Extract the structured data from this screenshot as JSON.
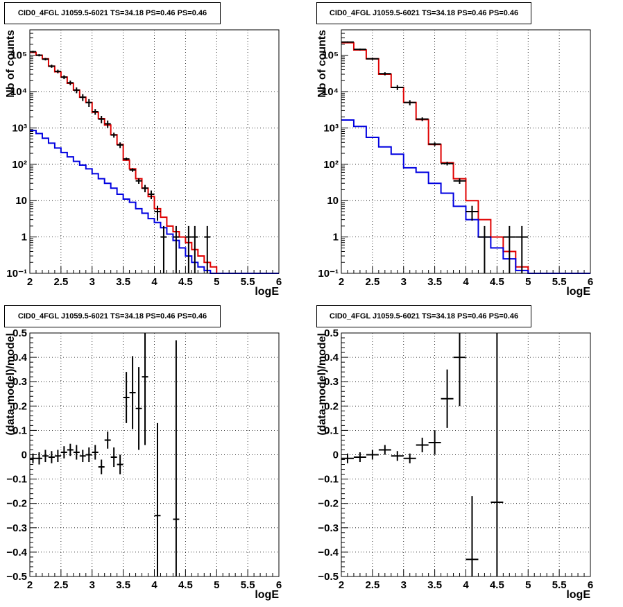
{
  "chart_data": [
    {
      "type": "line",
      "title": "CID0_4FGL J1059.5-6021 TS=34.18 PS=0.46 PS=0.46",
      "xlabel": "logE",
      "ylabel": "Nb of counts",
      "xlim": [
        2,
        6
      ],
      "ylim": [
        0.1,
        500000
      ],
      "yscale": "log",
      "grid": true,
      "xticks": [
        2,
        2.5,
        3,
        3.5,
        4,
        4.5,
        5,
        5.5,
        6
      ],
      "xtick_labels": [
        "2",
        "2.5",
        "3",
        "3.5",
        "4",
        "4.5",
        "5",
        "5.5",
        "6"
      ],
      "yticks": [
        0.1,
        1,
        10,
        100,
        1000,
        10000,
        100000
      ],
      "ytick_labels": [
        "10⁻¹",
        "1",
        "10",
        "10²",
        "10³",
        "10⁴",
        "10⁵"
      ],
      "series": [
        {
          "kind": "step",
          "color": "#e00000",
          "edges": [
            2.0,
            2.1,
            2.2,
            2.3,
            2.4,
            2.5,
            2.6,
            2.7,
            2.8,
            2.9,
            3.0,
            3.1,
            3.2,
            3.3,
            3.4,
            3.5,
            3.6,
            3.7,
            3.8,
            3.9,
            4.0,
            4.1,
            4.2,
            4.3,
            4.4,
            4.5,
            4.6,
            4.7,
            4.8,
            4.9,
            5.0,
            5.1,
            5.2,
            5.3,
            5.4,
            5.5,
            5.6,
            5.7,
            5.8,
            5.9,
            6.0
          ],
          "values": [
            120000,
            100000,
            80000,
            50000,
            35000,
            25000,
            17000,
            11000,
            7000,
            5000,
            2700,
            1800,
            1200,
            650,
            350,
            130,
            75,
            40,
            22,
            13,
            6,
            3.5,
            2,
            1.4,
            1,
            0.7,
            0.45,
            0.3,
            0.2,
            0.15,
            0.1,
            0.1,
            0.1,
            0.1,
            0.1,
            0.1,
            0.1,
            0.1,
            0.1,
            0.1
          ]
        },
        {
          "kind": "step",
          "color": "#0000e0",
          "edges": [
            2.0,
            2.1,
            2.2,
            2.3,
            2.4,
            2.5,
            2.6,
            2.7,
            2.8,
            2.9,
            3.0,
            3.1,
            3.2,
            3.3,
            3.4,
            3.5,
            3.6,
            3.7,
            3.8,
            3.9,
            4.0,
            4.1,
            4.2,
            4.3,
            4.4,
            4.5,
            4.6,
            4.7,
            4.8,
            4.9,
            5.0,
            5.1,
            5.2,
            5.3,
            5.4,
            5.5,
            5.6,
            5.7,
            5.8,
            5.9,
            6.0
          ],
          "values": [
            850,
            700,
            520,
            380,
            280,
            210,
            160,
            120,
            95,
            75,
            55,
            40,
            30,
            22,
            15,
            11,
            9,
            6,
            4.5,
            3.2,
            2.5,
            1.8,
            1.2,
            0.8,
            0.5,
            0.3,
            0.2,
            0.15,
            0.12,
            0.1,
            0.1,
            0.1,
            0.1,
            0.1,
            0.1,
            0.1,
            0.1,
            0.1,
            0.1,
            0.1
          ]
        },
        {
          "kind": "errorbar",
          "color": "#000000",
          "xerr": 0.05,
          "points": [
            [
              2.05,
              125000,
              8000
            ],
            [
              2.15,
              100000,
              7000
            ],
            [
              2.25,
              78000,
              6000
            ],
            [
              2.35,
              50000,
              5000
            ],
            [
              2.45,
              36000,
              4000
            ],
            [
              2.55,
              25000,
              3000
            ],
            [
              2.65,
              17500,
              2500
            ],
            [
              2.75,
              11000,
              2000
            ],
            [
              2.85,
              7000,
              1500
            ],
            [
              2.95,
              5000,
              1200
            ],
            [
              3.05,
              2800,
              500
            ],
            [
              3.15,
              1750,
              400
            ],
            [
              3.25,
              1300,
              300
            ],
            [
              3.35,
              640,
              100
            ],
            [
              3.45,
              340,
              60
            ],
            [
              3.55,
              140,
              12
            ],
            [
              3.65,
              70,
              8
            ],
            [
              3.75,
              35,
              6
            ],
            [
              3.85,
              22,
              5
            ],
            [
              3.95,
              15,
              4
            ],
            [
              4.05,
              5,
              2.2
            ],
            [
              4.15,
              1,
              1
            ],
            [
              4.35,
              1,
              1
            ],
            [
              4.55,
              1,
              1
            ],
            [
              4.65,
              1,
              1
            ],
            [
              4.85,
              1,
              1
            ]
          ]
        }
      ]
    },
    {
      "type": "line",
      "title": "CID0_4FGL J1059.5-6021 TS=34.18 PS=0.46 PS=0.46",
      "xlabel": "logE",
      "ylabel": "Nb of counts",
      "xlim": [
        2,
        6
      ],
      "ylim": [
        0.1,
        500000
      ],
      "yscale": "log",
      "grid": true,
      "xticks": [
        2,
        2.5,
        3,
        3.5,
        4,
        4.5,
        5,
        5.5,
        6
      ],
      "xtick_labels": [
        "2",
        "2.5",
        "3",
        "3.5",
        "4",
        "4.5",
        "5",
        "5.5",
        "6"
      ],
      "yticks": [
        0.1,
        1,
        10,
        100,
        1000,
        10000,
        100000
      ],
      "ytick_labels": [
        "10⁻¹",
        "1",
        "10",
        "10²",
        "10³",
        "10⁴",
        "10⁵"
      ],
      "series": [
        {
          "kind": "step",
          "color": "#e00000",
          "edges": [
            2.0,
            2.2,
            2.4,
            2.6,
            2.8,
            3.0,
            3.2,
            3.4,
            3.6,
            3.8,
            4.0,
            4.2,
            4.4,
            4.6,
            4.8,
            5.0,
            5.2,
            5.4,
            5.6,
            5.8,
            6.0
          ],
          "values": [
            220000,
            140000,
            80000,
            30000,
            13000,
            5000,
            1700,
            350,
            110,
            40,
            10,
            3,
            1,
            0.4,
            0.15,
            0.1,
            0.1,
            0.1,
            0.1,
            0.1
          ]
        },
        {
          "kind": "step",
          "color": "#0000e0",
          "edges": [
            2.0,
            2.2,
            2.4,
            2.6,
            2.8,
            3.0,
            3.2,
            3.4,
            3.6,
            3.8,
            4.0,
            4.2,
            4.4,
            4.6,
            4.8,
            5.0,
            5.2,
            5.4,
            5.6,
            5.8,
            6.0
          ],
          "values": [
            1650,
            1100,
            550,
            300,
            190,
            80,
            60,
            30,
            16,
            7,
            3,
            1,
            0.5,
            0.25,
            0.12,
            0.1,
            0.1,
            0.1,
            0.1,
            0.1
          ]
        },
        {
          "kind": "errorbar",
          "color": "#000000",
          "xerr": 0.1,
          "points": [
            [
              2.1,
              230000,
              10000
            ],
            [
              2.3,
              145000,
              8000
            ],
            [
              2.5,
              80000,
              6000
            ],
            [
              2.7,
              31000,
              3000
            ],
            [
              2.9,
              13000,
              2000
            ],
            [
              3.1,
              5000,
              800
            ],
            [
              3.3,
              1750,
              200
            ],
            [
              3.5,
              360,
              40
            ],
            [
              3.7,
              105,
              12
            ],
            [
              3.9,
              35,
              6
            ],
            [
              4.1,
              5,
              2.2
            ],
            [
              4.3,
              1,
              1
            ],
            [
              4.7,
              1,
              1
            ],
            [
              4.9,
              1,
              1
            ]
          ]
        }
      ]
    },
    {
      "type": "scatter",
      "title": "CID0_4FGL J1059.5-6021 TS=34.18 PS=0.46 PS=0.46",
      "xlabel": "logE",
      "ylabel": "(data-model)/model",
      "xlim": [
        2,
        6
      ],
      "ylim": [
        -0.5,
        0.5
      ],
      "grid": true,
      "xticks": [
        2,
        2.5,
        3,
        3.5,
        4,
        4.5,
        5,
        5.5,
        6
      ],
      "xtick_labels": [
        "2",
        "2.5",
        "3",
        "3.5",
        "4",
        "4.5",
        "5",
        "5.5",
        "6"
      ],
      "yticks": [
        -0.5,
        -0.4,
        -0.3,
        -0.2,
        -0.1,
        0,
        0.1,
        0.2,
        0.3,
        0.4,
        0.5
      ],
      "ytick_labels": [
        "−0.5",
        "−0.4",
        "−0.3",
        "−0.2",
        "−0.1",
        "0",
        "0.1",
        "0.2",
        "0.3",
        "0.4",
        "0.5"
      ],
      "series": [
        {
          "kind": "errorbar",
          "color": "#000000",
          "xerr": 0.05,
          "points": [
            [
              2.05,
              -0.015,
              0.02
            ],
            [
              2.15,
              -0.015,
              0.025
            ],
            [
              2.25,
              -0.005,
              0.025
            ],
            [
              2.35,
              -0.01,
              0.025
            ],
            [
              2.45,
              -0.005,
              0.025
            ],
            [
              2.55,
              0.01,
              0.025
            ],
            [
              2.65,
              0.02,
              0.025
            ],
            [
              2.75,
              0.01,
              0.03
            ],
            [
              2.85,
              -0.005,
              0.025
            ],
            [
              2.95,
              0.0,
              0.03
            ],
            [
              3.05,
              0.01,
              0.03
            ],
            [
              3.15,
              -0.05,
              0.03
            ],
            [
              3.25,
              0.06,
              0.035
            ],
            [
              3.35,
              -0.01,
              0.04
            ],
            [
              3.45,
              -0.04,
              0.04
            ],
            [
              3.55,
              0.235,
              0.105
            ],
            [
              3.65,
              0.255,
              0.15
            ],
            [
              3.75,
              0.19,
              0.17
            ],
            [
              3.85,
              0.32,
              0.28
            ],
            [
              4.05,
              -0.25,
              0.38
            ],
            [
              4.35,
              -0.265,
              0.735
            ]
          ]
        }
      ]
    },
    {
      "type": "scatter",
      "title": "CID0_4FGL J1059.5-6021 TS=34.18 PS=0.46 PS=0.46",
      "xlabel": "logE",
      "ylabel": "(data-model)/model",
      "xlim": [
        2,
        6
      ],
      "ylim": [
        -0.5,
        0.5
      ],
      "grid": true,
      "xticks": [
        2,
        2.5,
        3,
        3.5,
        4,
        4.5,
        5,
        5.5,
        6
      ],
      "xtick_labels": [
        "2",
        "2.5",
        "3",
        "3.5",
        "4",
        "4.5",
        "5",
        "5.5",
        "6"
      ],
      "yticks": [
        -0.5,
        -0.4,
        -0.3,
        -0.2,
        -0.1,
        0,
        0.1,
        0.2,
        0.3,
        0.4,
        0.5
      ],
      "ytick_labels": [
        "−0.5",
        "−0.4",
        "−0.3",
        "−0.2",
        "−0.1",
        "0",
        "0.1",
        "0.2",
        "0.3",
        "0.4",
        "0.5"
      ],
      "series": [
        {
          "kind": "errorbar",
          "color": "#000000",
          "xerr": 0.1,
          "points": [
            [
              2.1,
              -0.015,
              0.02
            ],
            [
              2.3,
              -0.01,
              0.02
            ],
            [
              2.5,
              0.0,
              0.02
            ],
            [
              2.7,
              0.02,
              0.02
            ],
            [
              2.9,
              -0.005,
              0.02
            ],
            [
              3.1,
              -0.015,
              0.02
            ],
            [
              3.3,
              0.04,
              0.03
            ],
            [
              3.5,
              0.05,
              0.05
            ],
            [
              3.7,
              0.23,
              0.12
            ],
            [
              3.9,
              0.4,
              0.2
            ],
            [
              4.1,
              -0.43,
              0.26
            ],
            [
              4.5,
              -0.195,
              0.75
            ]
          ]
        }
      ]
    }
  ]
}
